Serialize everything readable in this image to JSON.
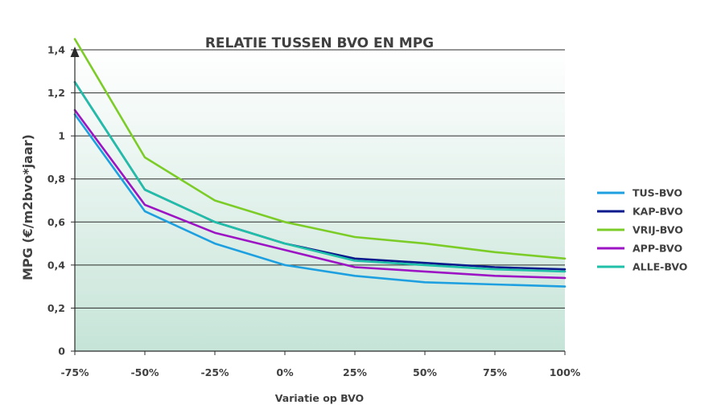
{
  "chart_data": {
    "type": "line",
    "title": "RELATIE TUSSEN BVO EN MPG",
    "xlabel": "Variatie op BVO",
    "ylabel": "MPG (€/m2bvo*jaar)",
    "categories": [
      "-75%",
      "-50%",
      "-25%",
      "0%",
      "25%",
      "50%",
      "75%",
      "100%"
    ],
    "ylim": [
      0,
      1.4
    ],
    "yticks": [
      0,
      0.2,
      0.4,
      0.6,
      0.8,
      1,
      1.2,
      1.4
    ],
    "ytick_labels": [
      "0",
      "0,2",
      "0,4",
      "0,6",
      "0,8",
      "1",
      "1,2",
      "1,4"
    ],
    "grid": true,
    "legend_position": "right",
    "series": [
      {
        "name": "TUS-BVO",
        "color": "#1ea0e0",
        "values": [
          1.1,
          0.65,
          0.5,
          0.4,
          0.35,
          0.32,
          0.31,
          0.3
        ]
      },
      {
        "name": "KAP-BVO",
        "color": "#0a1a8c",
        "values": [
          1.25,
          0.75,
          0.6,
          0.5,
          0.43,
          0.41,
          0.39,
          0.38
        ]
      },
      {
        "name": "VRIJ-BVO",
        "color": "#7ccc28",
        "values": [
          1.45,
          0.9,
          0.7,
          0.6,
          0.53,
          0.5,
          0.46,
          0.43
        ]
      },
      {
        "name": "APP-BVO",
        "color": "#9c14c4",
        "values": [
          1.12,
          0.68,
          0.55,
          0.47,
          0.39,
          0.37,
          0.35,
          0.34
        ]
      },
      {
        "name": "ALLE-BVO",
        "color": "#1fbfa8",
        "values": [
          1.25,
          0.75,
          0.6,
          0.5,
          0.42,
          0.4,
          0.38,
          0.37
        ]
      }
    ]
  }
}
